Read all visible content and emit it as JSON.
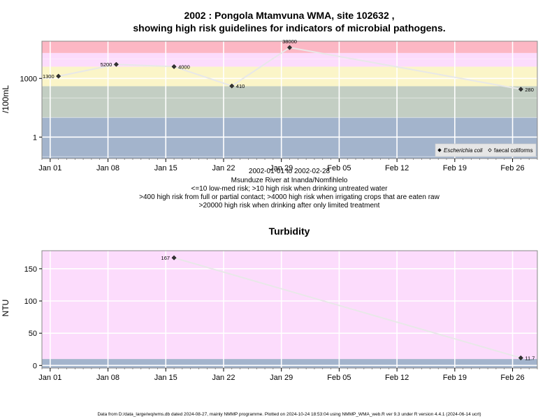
{
  "chart_data": [
    {
      "type": "line",
      "title": [
        "2002 : Pongola Mtamvuna WMA, site 102632 ,",
        "showing high risk guidelines for indicators of microbial pathogens."
      ],
      "ylabel": "/100mL",
      "xlabel_lines": [
        "2002-01-01 to 2002-02-28",
        "Msunduze River at Inanda/Nomfihlelo",
        "<=10 low-med risk; >10 high risk when drinking untreated water",
        ">400 high risk from full or partial contact; >4000 high risk when irrigating crops that are eaten raw",
        ">20000 high risk when drinking after only limited treatment"
      ],
      "y_scale": "log",
      "ylim": [
        0.08,
        80000
      ],
      "y_ticks": [
        1,
        1000
      ],
      "y_tick_labels": [
        "1",
        "1000"
      ],
      "x_ticks": [
        "2002-01-01",
        "2002-01-08",
        "2002-01-15",
        "2002-01-22",
        "2002-01-29",
        "2002-02-05",
        "2002-02-12",
        "2002-02-19",
        "2002-02-26"
      ],
      "x_tick_labels": [
        "Jan 01",
        "Jan 08",
        "Jan 15",
        "Jan 22",
        "Jan 29",
        "Feb 05",
        "Feb 12",
        "Feb 19",
        "Feb 26"
      ],
      "xlim": [
        "2002-01-00",
        "2002-03-01"
      ],
      "grid": true,
      "risk_bands": [
        {
          "from": 0.08,
          "to": 10,
          "color": "#a3b4cc"
        },
        {
          "from": 10,
          "to": 400,
          "color": "#c3cec3"
        },
        {
          "from": 400,
          "to": 4000,
          "color": "#fbf5c8"
        },
        {
          "from": 4000,
          "to": 20000,
          "color": "#fcdcfc"
        },
        {
          "from": 20000,
          "to": 80000,
          "color": "#fcb7c4"
        }
      ],
      "series": [
        {
          "name": "Escherichia coli",
          "marker": "filled-diamond",
          "x": [
            "2002-01-02",
            "2002-01-09",
            "2002-01-16",
            "2002-01-23",
            "2002-01-30",
            "2002-02-27"
          ],
          "y": [
            1300,
            5200,
            4000,
            410,
            38000,
            280
          ],
          "labels": [
            "1300",
            "5200",
            "4000",
            "410",
            "38000",
            "280"
          ]
        }
      ],
      "legend": {
        "placement": "bottom-right",
        "items": [
          {
            "label": "Escherichia coli",
            "marker": "filled-diamond",
            "italic": true
          },
          {
            "label": "faecal coliforms",
            "marker": "open-diamond",
            "italic": false
          }
        ]
      }
    },
    {
      "type": "line",
      "title": "Turbidity",
      "ylabel": "NTU",
      "ylim": [
        -4,
        178
      ],
      "y_ticks": [
        0,
        50,
        100,
        150
      ],
      "y_tick_labels": [
        "0",
        "50",
        "100",
        "150"
      ],
      "x_ticks": [
        "2002-01-01",
        "2002-01-08",
        "2002-01-15",
        "2002-01-22",
        "2002-01-29",
        "2002-02-05",
        "2002-02-12",
        "2002-02-19",
        "2002-02-26"
      ],
      "x_tick_labels": [
        "Jan 01",
        "Jan 08",
        "Jan 15",
        "Jan 22",
        "Jan 29",
        "Feb 05",
        "Feb 12",
        "Feb 19",
        "Feb 26"
      ],
      "xlim": [
        "2002-01-00",
        "2002-03-01"
      ],
      "grid": true,
      "risk_bands": [
        {
          "from": -4,
          "to": 10,
          "color": "#a3b4cc"
        },
        {
          "from": 10,
          "to": 178,
          "color": "#fcdcfc"
        }
      ],
      "series": [
        {
          "x": [
            "2002-01-16",
            "2002-02-27"
          ],
          "y": [
            167,
            11.7
          ],
          "labels": [
            "167",
            "11.7"
          ]
        }
      ]
    }
  ],
  "footer": "Data from D:/data_large/wq/wms.db dated 2024-08-27, mainly NMMP programme. Plotted on 2024-10-24 18:53:04 using NMMP_WMA_web.R ver 9.3 under R version 4.4.1 (2024-06-14 ucrt)"
}
